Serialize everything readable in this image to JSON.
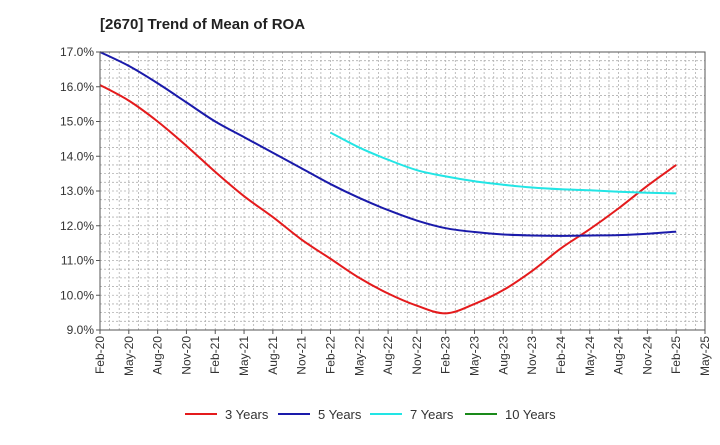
{
  "chart_data": {
    "type": "line",
    "title": "[2670]  Trend of Mean of ROA",
    "xlabel": "",
    "ylabel": "",
    "ylim": [
      9.0,
      17.0
    ],
    "y_ticks": [
      "17.0%",
      "16.0%",
      "15.0%",
      "14.0%",
      "13.0%",
      "12.0%",
      "11.0%",
      "10.0%",
      "9.0%"
    ],
    "x_ticks": [
      "Feb-20",
      "May-20",
      "Aug-20",
      "Nov-20",
      "Feb-21",
      "May-21",
      "Aug-21",
      "Nov-21",
      "Feb-22",
      "May-22",
      "Aug-22",
      "Nov-22",
      "Feb-23",
      "May-23",
      "Aug-23",
      "Nov-23",
      "Feb-24",
      "May-24",
      "Aug-24",
      "Nov-24",
      "Feb-25",
      "May-25"
    ],
    "grid": true,
    "legend_position": "bottom",
    "series": [
      {
        "name": "3 Years",
        "color": "#e41a1c",
        "start_index": 0,
        "values": [
          16.05,
          15.6,
          15.0,
          14.3,
          13.55,
          12.85,
          12.25,
          11.6,
          11.05,
          10.5,
          10.05,
          9.7,
          9.48,
          9.75,
          10.15,
          10.7,
          11.35,
          11.9,
          12.5,
          13.15,
          13.75
        ]
      },
      {
        "name": "5 Years",
        "color": "#1a1aaa",
        "start_index": 0,
        "values": [
          17.0,
          16.6,
          16.1,
          15.55,
          15.0,
          14.55,
          14.1,
          13.65,
          13.2,
          12.8,
          12.45,
          12.15,
          11.93,
          11.82,
          11.75,
          11.72,
          11.71,
          11.72,
          11.73,
          11.77,
          11.83
        ]
      },
      {
        "name": "7 Years",
        "color": "#22e5e5",
        "start_index": 8,
        "values": [
          14.68,
          14.25,
          13.9,
          13.6,
          13.42,
          13.28,
          13.18,
          13.1,
          13.05,
          13.02,
          12.98,
          12.95,
          12.93
        ]
      },
      {
        "name": "10 Years",
        "color": "#1a8a1a",
        "start_index": 0,
        "values": []
      }
    ]
  }
}
